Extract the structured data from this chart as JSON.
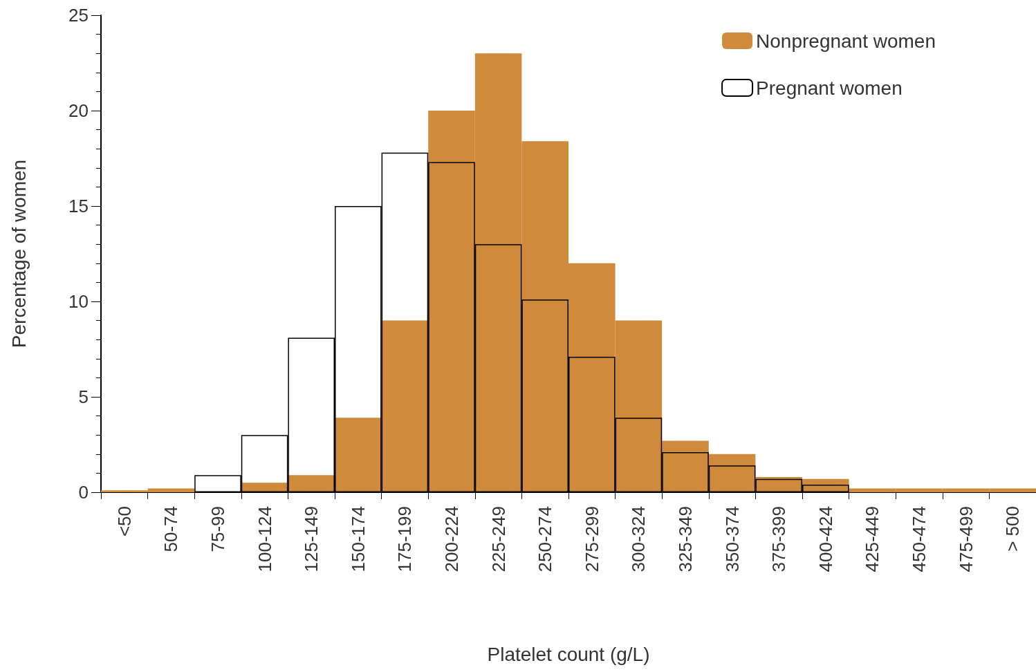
{
  "chart_data": {
    "type": "bar",
    "xlabel": "Platelet count (g/L)",
    "ylabel": "Percentage of women",
    "categories": [
      "<50",
      "50-74",
      "75-99",
      "100-124",
      "125-149",
      "150-174",
      "175-199",
      "200-224",
      "225-249",
      "250-274",
      "275-299",
      "300-324",
      "325-349",
      "350-374",
      "375-399",
      "400-424",
      "425-449",
      "450-474",
      "475-499",
      "> 500"
    ],
    "series": [
      {
        "name": "Nonpregnant women",
        "color": "#d08a3c",
        "values": [
          0.1,
          0.2,
          null,
          0.5,
          0.9,
          3.9,
          9.0,
          20.0,
          23.0,
          18.4,
          12.0,
          9.0,
          2.7,
          2.0,
          0.8,
          0.7,
          0.2,
          0.2,
          0.2,
          0.2
        ]
      },
      {
        "name": "Pregnant women",
        "color": "#000000",
        "values": [
          null,
          null,
          0.9,
          3.0,
          8.1,
          15.0,
          17.8,
          17.3,
          13.0,
          10.1,
          7.1,
          3.9,
          2.1,
          1.4,
          0.7,
          0.4,
          null,
          null,
          null,
          null
        ]
      }
    ],
    "ylim": [
      0,
      25
    ],
    "yticks": [
      0,
      5,
      10,
      15,
      20,
      25
    ],
    "grid": false,
    "legend": "top right"
  }
}
